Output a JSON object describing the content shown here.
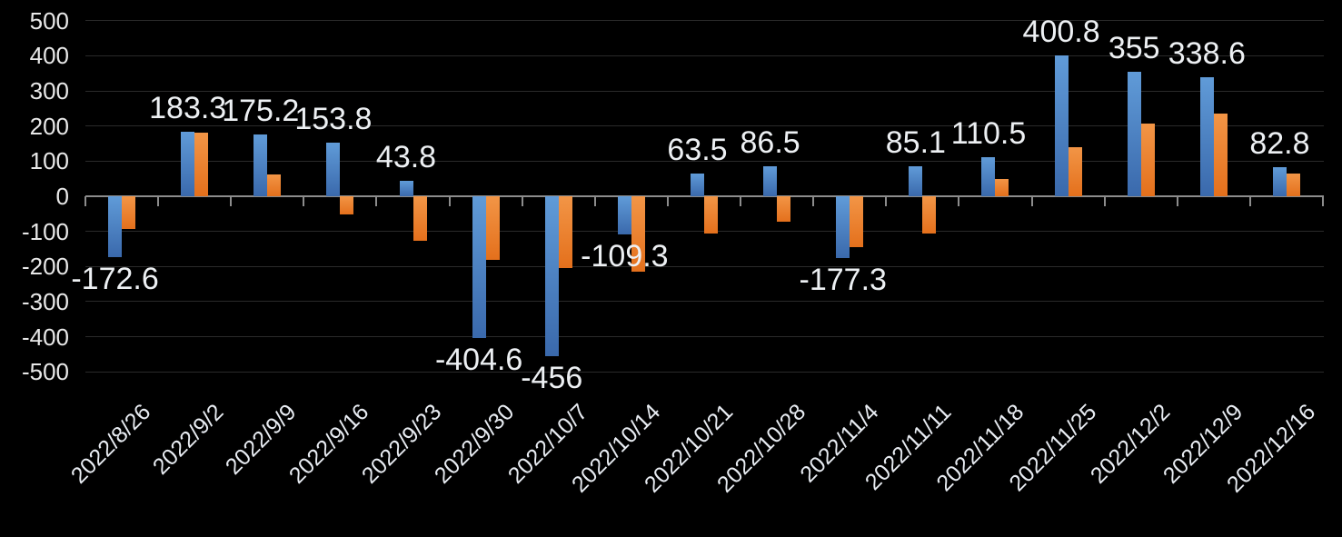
{
  "chart_data": {
    "type": "bar",
    "title": "",
    "legend_position": "none",
    "grid": true,
    "background_color": "#000000",
    "axis_color": "#8c8c8c",
    "gridline_color": "#2a2a2a",
    "text_color": "#e8e8e8",
    "categories": [
      "2022/8/26",
      "2022/9/2",
      "2022/9/9",
      "2022/9/16",
      "2022/9/23",
      "2022/9/30",
      "2022/10/7",
      "2022/10/14",
      "2022/10/21",
      "2022/10/28",
      "2022/11/4",
      "2022/11/11",
      "2022/11/18",
      "2022/11/25",
      "2022/12/2",
      "2022/12/9",
      "2022/12/16"
    ],
    "series": [
      {
        "name": "blue",
        "color_top": "#609bd8",
        "color_bottom": "#3a69ac",
        "values": [
          -172.6,
          183.3,
          175.2,
          153.8,
          43.8,
          -404.6,
          -456,
          -109.3,
          63.5,
          86.5,
          -177.3,
          85.1,
          110.5,
          400.8,
          355,
          338.6,
          82.8
        ],
        "labels": [
          "-172.6",
          "183.3",
          "175.2",
          "153.8",
          "43.8",
          "-404.6",
          "-456",
          "-109.3",
          "63.5",
          "86.5",
          "-177.3",
          "85.1",
          "110.5",
          "400.8",
          "355",
          "338.6",
          "82.8"
        ]
      },
      {
        "name": "orange",
        "color_top": "#f29546",
        "color_bottom": "#e4701c",
        "values": [
          -92,
          182,
          63,
          -52,
          -126,
          -181,
          -204,
          -214,
          -105,
          -72,
          -145,
          -107,
          50,
          140,
          206,
          235,
          66
        ],
        "labels": []
      }
    ],
    "y_axis": {
      "min": -500,
      "max": 500,
      "step": 100,
      "tick_labels": [
        "500",
        "400",
        "300",
        "200",
        "100",
        "0",
        "-100",
        "-200",
        "-300",
        "-400",
        "-500"
      ]
    }
  }
}
